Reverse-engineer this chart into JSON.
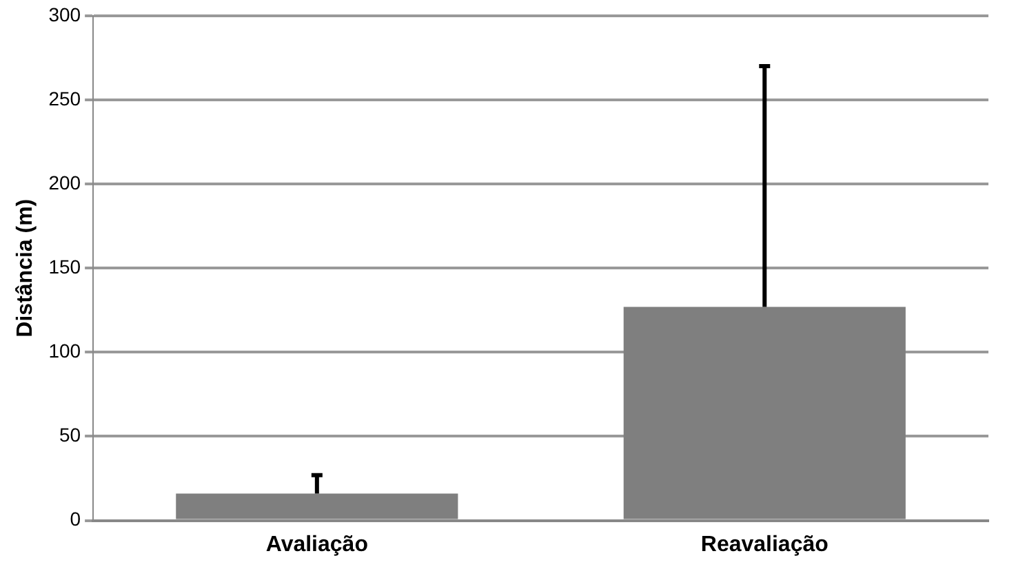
{
  "chart_data": {
    "type": "bar",
    "ylabel": "Distância (m)",
    "categories": [
      "Avaliação",
      "Reavaliação"
    ],
    "values": [
      16,
      127
    ],
    "color": "#7f7f7f",
    "errors": [
      [
        16,
        27
      ],
      [
        127,
        270
      ]
    ],
    "ylim": [
      0,
      300
    ],
    "yticks": [
      0,
      50,
      100,
      150,
      200,
      250,
      300
    ],
    "grid": "y"
  }
}
